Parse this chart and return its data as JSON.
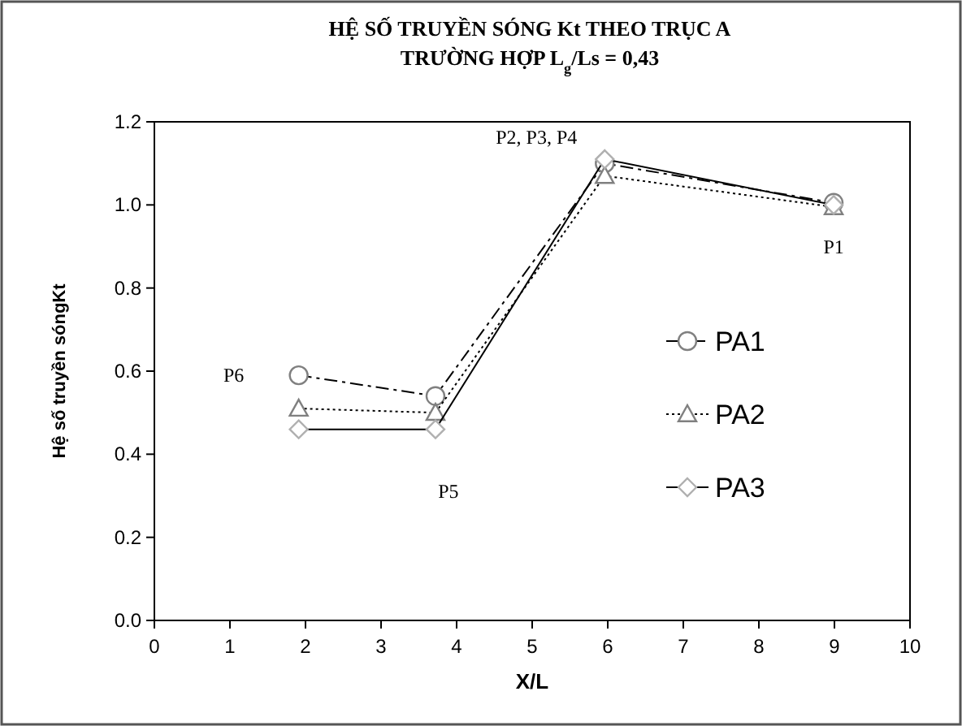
{
  "chart_data": {
    "type": "line",
    "title": "HỆ SỐ TRUYỀN SÓNG Kt THEO TRỤC A",
    "subtitle": "TRƯỜNG HỢP L$_{g}$/Ls = 0,43",
    "xlabel": "X/L",
    "ylabel": "Hệ số truyền sóngKt",
    "x": [
      1.91,
      3.72,
      5.96,
      8.99
    ],
    "series": [
      {
        "name": "PA1",
        "color": "#808080",
        "marker": "circle",
        "line_style": "dashed",
        "values": [
          0.59,
          0.54,
          1.1,
          1.005
        ]
      },
      {
        "name": "PA2",
        "color": "#808080",
        "marker": "triangle",
        "line_style": "dotted",
        "values": [
          0.51,
          0.5,
          1.07,
          0.995
        ]
      },
      {
        "name": "PA3",
        "color": "#b0b0b0",
        "marker": "diamond",
        "line_style": "solid",
        "values": [
          0.46,
          0.46,
          1.11,
          1.0
        ]
      }
    ],
    "xlim": [
      0,
      10
    ],
    "xticks": [
      0,
      1,
      2,
      3,
      4,
      5,
      6,
      7,
      8,
      9,
      10
    ],
    "ylim": [
      0,
      1.2
    ],
    "yticks": [
      {
        "value": 0,
        "label": "0.0"
      },
      {
        "value": 0.2,
        "label": "0.2"
      },
      {
        "value": 0.4,
        "label": "0.4"
      },
      {
        "value": 0.6,
        "label": "0.6"
      },
      {
        "value": 0.8,
        "label": "0.8"
      },
      {
        "value": 1,
        "label": "1.0"
      },
      {
        "value": 1.2,
        "label": "1.2"
      }
    ],
    "grid": false,
    "legend": "right",
    "annotations": [
      {
        "text": "P1",
        "x": 8.99,
        "y": 1.0
      },
      {
        "text": "P2, P3, P4",
        "x": 5.96,
        "y": 1.1
      },
      {
        "text": "P5",
        "x": 3.72,
        "y": 0.46
      },
      {
        "text": "P6",
        "x": 1.91,
        "y": 0.59
      }
    ]
  }
}
